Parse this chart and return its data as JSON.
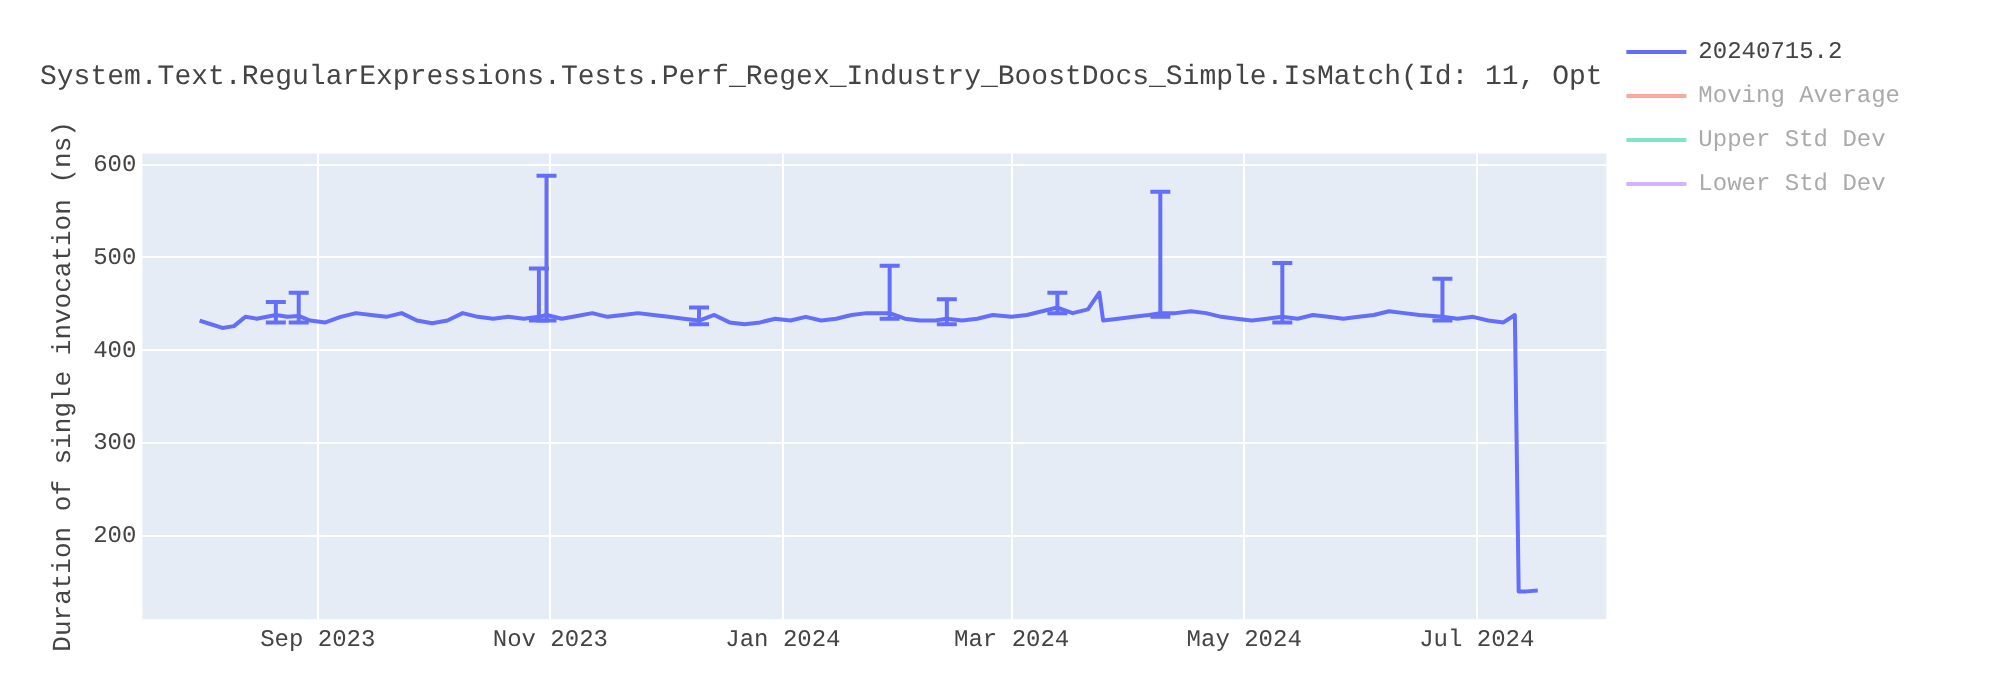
{
  "chart_data": {
    "type": "line",
    "title": "System.Text.RegularExpressions.Tests.Perf_Regex_Industry_BoostDocs_Simple.IsMatch(Id: 11, Opt",
    "ylabel": "Duration of single invocation (ns)",
    "x": [
      "2023-08-01",
      "2023-08-04",
      "2023-08-07",
      "2023-08-10",
      "2023-08-13",
      "2023-08-16",
      "2023-08-21",
      "2023-08-24",
      "2023-08-27",
      "2023-08-30",
      "2023-09-03",
      "2023-09-07",
      "2023-09-11",
      "2023-09-15",
      "2023-09-19",
      "2023-09-23",
      "2023-09-27",
      "2023-10-01",
      "2023-10-05",
      "2023-10-09",
      "2023-10-13",
      "2023-10-17",
      "2023-10-21",
      "2023-10-25",
      "2023-10-29",
      "2023-10-31",
      "2023-11-04",
      "2023-11-08",
      "2023-11-12",
      "2023-11-16",
      "2023-11-20",
      "2023-11-24",
      "2023-11-28",
      "2023-12-02",
      "2023-12-06",
      "2023-12-10",
      "2023-12-14",
      "2023-12-18",
      "2023-12-22",
      "2023-12-26",
      "2023-12-30",
      "2024-01-03",
      "2024-01-07",
      "2024-01-11",
      "2024-01-15",
      "2024-01-19",
      "2024-01-23",
      "2024-01-29",
      "2024-02-02",
      "2024-02-06",
      "2024-02-10",
      "2024-02-13",
      "2024-02-17",
      "2024-02-21",
      "2024-02-25",
      "2024-03-01",
      "2024-03-05",
      "2024-03-09",
      "2024-03-13",
      "2024-03-17",
      "2024-03-21",
      "2024-03-24",
      "2024-03-25",
      "2024-03-29",
      "2024-04-02",
      "2024-04-06",
      "2024-04-09",
      "2024-04-13",
      "2024-04-17",
      "2024-04-21",
      "2024-04-25",
      "2024-04-29",
      "2024-05-03",
      "2024-05-07",
      "2024-05-11",
      "2024-05-15",
      "2024-05-19",
      "2024-05-23",
      "2024-05-27",
      "2024-05-31",
      "2024-06-04",
      "2024-06-08",
      "2024-06-12",
      "2024-06-16",
      "2024-06-22",
      "2024-06-26",
      "2024-06-30",
      "2024-07-04",
      "2024-07-08",
      "2024-07-11",
      "2024-07-12",
      "2024-07-14",
      "2024-07-17"
    ],
    "series": [
      {
        "name": "20240715.2",
        "color": "#636efa",
        "values": [
          432,
          428,
          424,
          426,
          436,
          434,
          438,
          436,
          437,
          432,
          430,
          436,
          440,
          438,
          436,
          440,
          432,
          429,
          432,
          440,
          436,
          434,
          436,
          434,
          436,
          438,
          434,
          437,
          440,
          436,
          438,
          440,
          438,
          436,
          434,
          432,
          438,
          430,
          428,
          430,
          434,
          432,
          436,
          432,
          434,
          438,
          440,
          440,
          434,
          432,
          432,
          434,
          432,
          434,
          438,
          436,
          438,
          442,
          446,
          440,
          444,
          462,
          432,
          434,
          436,
          438,
          440,
          440,
          442,
          440,
          436,
          434,
          432,
          434,
          436,
          434,
          438,
          436,
          434,
          436,
          438,
          442,
          440,
          438,
          436,
          434,
          436,
          432,
          430,
          438,
          140,
          140,
          141
        ],
        "errors": [
          null,
          null,
          null,
          null,
          null,
          null,
          [
            430,
            452
          ],
          null,
          [
            430,
            462
          ],
          null,
          null,
          null,
          null,
          null,
          null,
          null,
          null,
          null,
          null,
          null,
          null,
          null,
          null,
          null,
          [
            432,
            488
          ],
          [
            432,
            588
          ],
          null,
          null,
          null,
          null,
          null,
          null,
          null,
          null,
          null,
          [
            428,
            446
          ],
          null,
          null,
          null,
          null,
          null,
          null,
          null,
          null,
          null,
          null,
          null,
          [
            434,
            491
          ],
          null,
          null,
          null,
          [
            428,
            455
          ],
          null,
          null,
          null,
          null,
          null,
          null,
          [
            440,
            462
          ],
          null,
          null,
          null,
          null,
          null,
          null,
          null,
          [
            436,
            571
          ],
          null,
          null,
          null,
          null,
          null,
          null,
          null,
          [
            430,
            494
          ],
          null,
          null,
          null,
          null,
          null,
          null,
          null,
          null,
          null,
          [
            432,
            477
          ],
          null,
          null,
          null,
          null,
          null,
          null,
          null,
          null
        ]
      },
      {
        "name": "Moving Average",
        "color": "#ef553b",
        "values": [
          null,
          null,
          null,
          null,
          null,
          null,
          null,
          null,
          null,
          null,
          null,
          null,
          null,
          null,
          null,
          null,
          null,
          null,
          null,
          null,
          null,
          null,
          null,
          null,
          null,
          null,
          null,
          null,
          null,
          null,
          null,
          null,
          null,
          null,
          null,
          null,
          null,
          null,
          null,
          null,
          null,
          null,
          null,
          null,
          null,
          null,
          null,
          null,
          null,
          null,
          null,
          null,
          null,
          null,
          null,
          null,
          null,
          null,
          null,
          null,
          null,
          null,
          null,
          null,
          null,
          null,
          null,
          null,
          null,
          null,
          null,
          null,
          null,
          null,
          null,
          null,
          null,
          null,
          null,
          null,
          null,
          null,
          null,
          null,
          null,
          null,
          null,
          null,
          null,
          null,
          null,
          null,
          null
        ]
      },
      {
        "name": "Upper Std Dev",
        "color": "#00cc96",
        "values": [
          null,
          null,
          null,
          null,
          null,
          null,
          null,
          null,
          null,
          null,
          null,
          null,
          null,
          null,
          null,
          null,
          null,
          null,
          null,
          null,
          null,
          null,
          null,
          null,
          null,
          null,
          null,
          null,
          null,
          null,
          null,
          null,
          null,
          null,
          null,
          null,
          null,
          null,
          null,
          null,
          null,
          null,
          null,
          null,
          null,
          null,
          null,
          null,
          null,
          null,
          null,
          null,
          null,
          null,
          null,
          null,
          null,
          null,
          null,
          null,
          null,
          null,
          null,
          null,
          null,
          null,
          null,
          null,
          null,
          null,
          null,
          null,
          null,
          null,
          null,
          null,
          null,
          null,
          null,
          null,
          null,
          null,
          null,
          null,
          null,
          null,
          null,
          null,
          null,
          null,
          null,
          null,
          null
        ]
      },
      {
        "name": "Lower Std Dev",
        "color": "#ab63fa",
        "values": [
          null,
          null,
          null,
          null,
          null,
          null,
          null,
          null,
          null,
          null,
          null,
          null,
          null,
          null,
          null,
          null,
          null,
          null,
          null,
          null,
          null,
          null,
          null,
          null,
          null,
          null,
          null,
          null,
          null,
          null,
          null,
          null,
          null,
          null,
          null,
          null,
          null,
          null,
          null,
          null,
          null,
          null,
          null,
          null,
          null,
          null,
          null,
          null,
          null,
          null,
          null,
          null,
          null,
          null,
          null,
          null,
          null,
          null,
          null,
          null,
          null,
          null,
          null,
          null,
          null,
          null,
          null,
          null,
          null,
          null,
          null,
          null,
          null,
          null,
          null,
          null,
          null,
          null,
          null,
          null,
          null,
          null,
          null,
          null,
          null,
          null,
          null,
          null,
          null,
          null,
          null,
          null,
          null
        ]
      }
    ],
    "xlim": [
      "2023-07-17",
      "2024-08-04"
    ],
    "xticks": [
      {
        "value": "2023-09-01",
        "label": "Sep 2023"
      },
      {
        "value": "2023-11-01",
        "label": "Nov 2023"
      },
      {
        "value": "2024-01-01",
        "label": "Jan 2024"
      },
      {
        "value": "2024-03-01",
        "label": "Mar 2024"
      },
      {
        "value": "2024-05-01",
        "label": "May 2024"
      },
      {
        "value": "2024-07-01",
        "label": "Jul 2024"
      }
    ],
    "ylim": [
      110,
      612
    ],
    "yticks": [
      200,
      300,
      400,
      500,
      600
    ],
    "grid": true,
    "legend": "top right",
    "marker": "none",
    "line_style": "solid"
  }
}
